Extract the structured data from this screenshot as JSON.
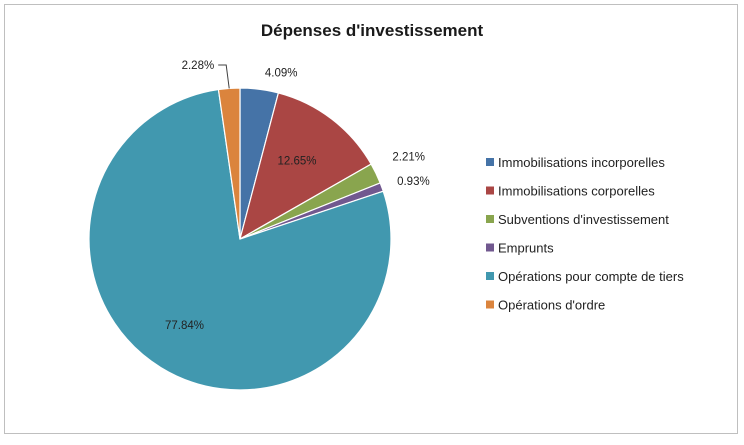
{
  "chart_data": {
    "type": "pie",
    "title": "Dépenses d'investissement",
    "legend_position": "right",
    "slices": [
      {
        "name": "Immobilisations incorporelles",
        "value": 4.09,
        "label": "4.09%",
        "color": "#4573a7"
      },
      {
        "name": "Immobilisations corporelles",
        "value": 12.65,
        "label": "12.65%",
        "color": "#aa4644"
      },
      {
        "name": "Subventions d'investissement",
        "value": 2.21,
        "label": "2.21%",
        "color": "#89a54e"
      },
      {
        "name": "Emprunts",
        "value": 0.93,
        "label": "0.93%",
        "color": "#71588f"
      },
      {
        "name": "Opérations pour compte de tiers",
        "value": 77.84,
        "label": "77.84%",
        "color": "#4198af"
      },
      {
        "name": "Opérations d'ordre",
        "value": 2.28,
        "label": "2.28%",
        "color": "#db843d"
      }
    ]
  }
}
